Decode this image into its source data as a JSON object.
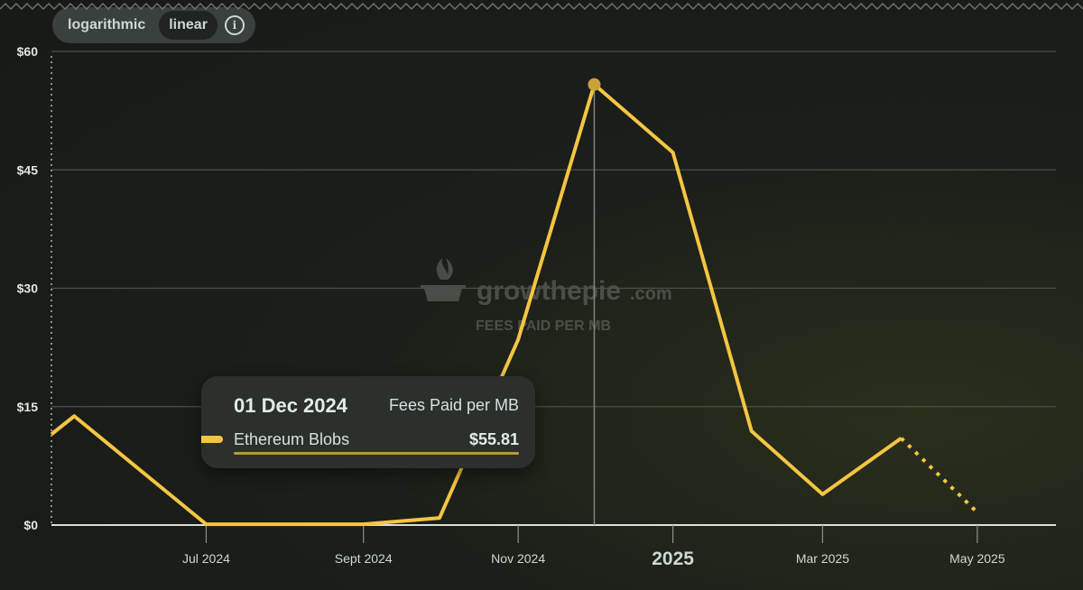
{
  "scale_toggle": {
    "options": [
      "logarithmic",
      "linear"
    ],
    "active": "linear",
    "info_glyph": "i"
  },
  "watermark": {
    "brand": "growthepie",
    "domain": ".com",
    "subtitle": "FEES PAID PER MB"
  },
  "tooltip": {
    "date": "01 Dec 2024",
    "metric": "Fees Paid per MB",
    "series": "Ethereum Blobs",
    "value": "$55.81"
  },
  "colors": {
    "series": "#f5c542",
    "grid": "#4a504c",
    "axis": "#d9dfdb"
  },
  "chart_data": {
    "type": "line",
    "title": "",
    "series": [
      {
        "name": "Ethereum Blobs",
        "color": "#f5c542",
        "points": [
          [
            "2024-05-01",
            11.5
          ],
          [
            "2024-05-10",
            13.8
          ],
          [
            "2024-07-01",
            0.1
          ],
          [
            "2024-09-01",
            0.1
          ],
          [
            "2024-10-01",
            0.9
          ],
          [
            "2024-11-01",
            23.5
          ],
          [
            "2024-12-01",
            55.81
          ],
          [
            "2025-01-01",
            47.2
          ],
          [
            "2025-02-01",
            11.9
          ],
          [
            "2025-03-01",
            3.9
          ],
          [
            "2025-04-01",
            11.0
          ]
        ],
        "projected": [
          [
            "2025-04-01",
            11.0
          ],
          [
            "2025-05-01",
            1.6
          ]
        ]
      }
    ],
    "x_ticks": [
      {
        "date": "2024-07-01",
        "label": "Jul 2024"
      },
      {
        "date": "2024-09-01",
        "label": "Sept 2024"
      },
      {
        "date": "2024-11-01",
        "label": "Nov 2024"
      },
      {
        "date": "2025-01-01",
        "label": "2025",
        "major": true
      },
      {
        "date": "2025-03-01",
        "label": "Mar 2025"
      },
      {
        "date": "2025-05-01",
        "label": "May 2025"
      }
    ],
    "y_ticks": [
      {
        "value": 0,
        "label": "$0"
      },
      {
        "value": 15,
        "label": "$15"
      },
      {
        "value": 30,
        "label": "$30"
      },
      {
        "value": 45,
        "label": "$45"
      },
      {
        "value": 60,
        "label": "$60"
      }
    ],
    "ylim": [
      0,
      60
    ],
    "xlim": [
      "2024-05-01",
      "2025-06-01"
    ],
    "highlight_date": "2024-12-01",
    "grid": true,
    "scale": "linear"
  }
}
